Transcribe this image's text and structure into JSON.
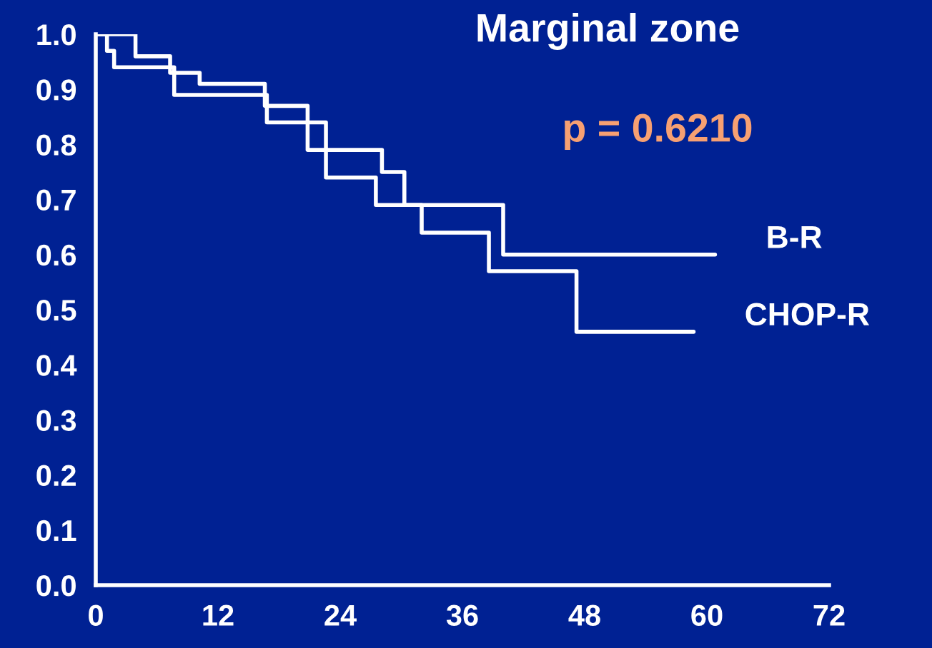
{
  "chart_data": {
    "type": "step",
    "title": "Marginal zone",
    "annotations": [
      "p = 0.6210"
    ],
    "series": [
      {
        "name": "B-R",
        "color": "#ffffff",
        "x": [
          0,
          3.9,
          7.3,
          10.2,
          16.6,
          20.8,
          28.1,
          30.3,
          40,
          60.8
        ],
        "values": [
          1.0,
          0.96,
          0.93,
          0.91,
          0.87,
          0.79,
          0.75,
          0.69,
          0.6,
          0.6
        ]
      },
      {
        "name": "CHOP-R",
        "color": "#ffffff",
        "x": [
          0,
          1.1,
          1.8,
          7.7,
          16.8,
          22.6,
          27.5,
          32,
          38.6,
          47.2,
          58.7
        ],
        "values": [
          1.0,
          0.97,
          0.94,
          0.89,
          0.84,
          0.74,
          0.69,
          0.64,
          0.57,
          0.46,
          0.46
        ]
      }
    ],
    "xlim": [
      0,
      72
    ],
    "xticks": [
      0,
      12,
      24,
      36,
      48,
      60,
      72
    ],
    "ylim": [
      0,
      1.0
    ],
    "yticks": [
      {
        "value": 0,
        "label": "0.0"
      },
      0.1,
      0.2,
      0.3,
      0.4,
      0.5,
      0.6,
      0.7,
      0.8,
      0.9,
      {
        "value": 1,
        "label": "1.0"
      }
    ],
    "grid": false,
    "legend": false,
    "line_style": "solid",
    "marker": "none"
  }
}
